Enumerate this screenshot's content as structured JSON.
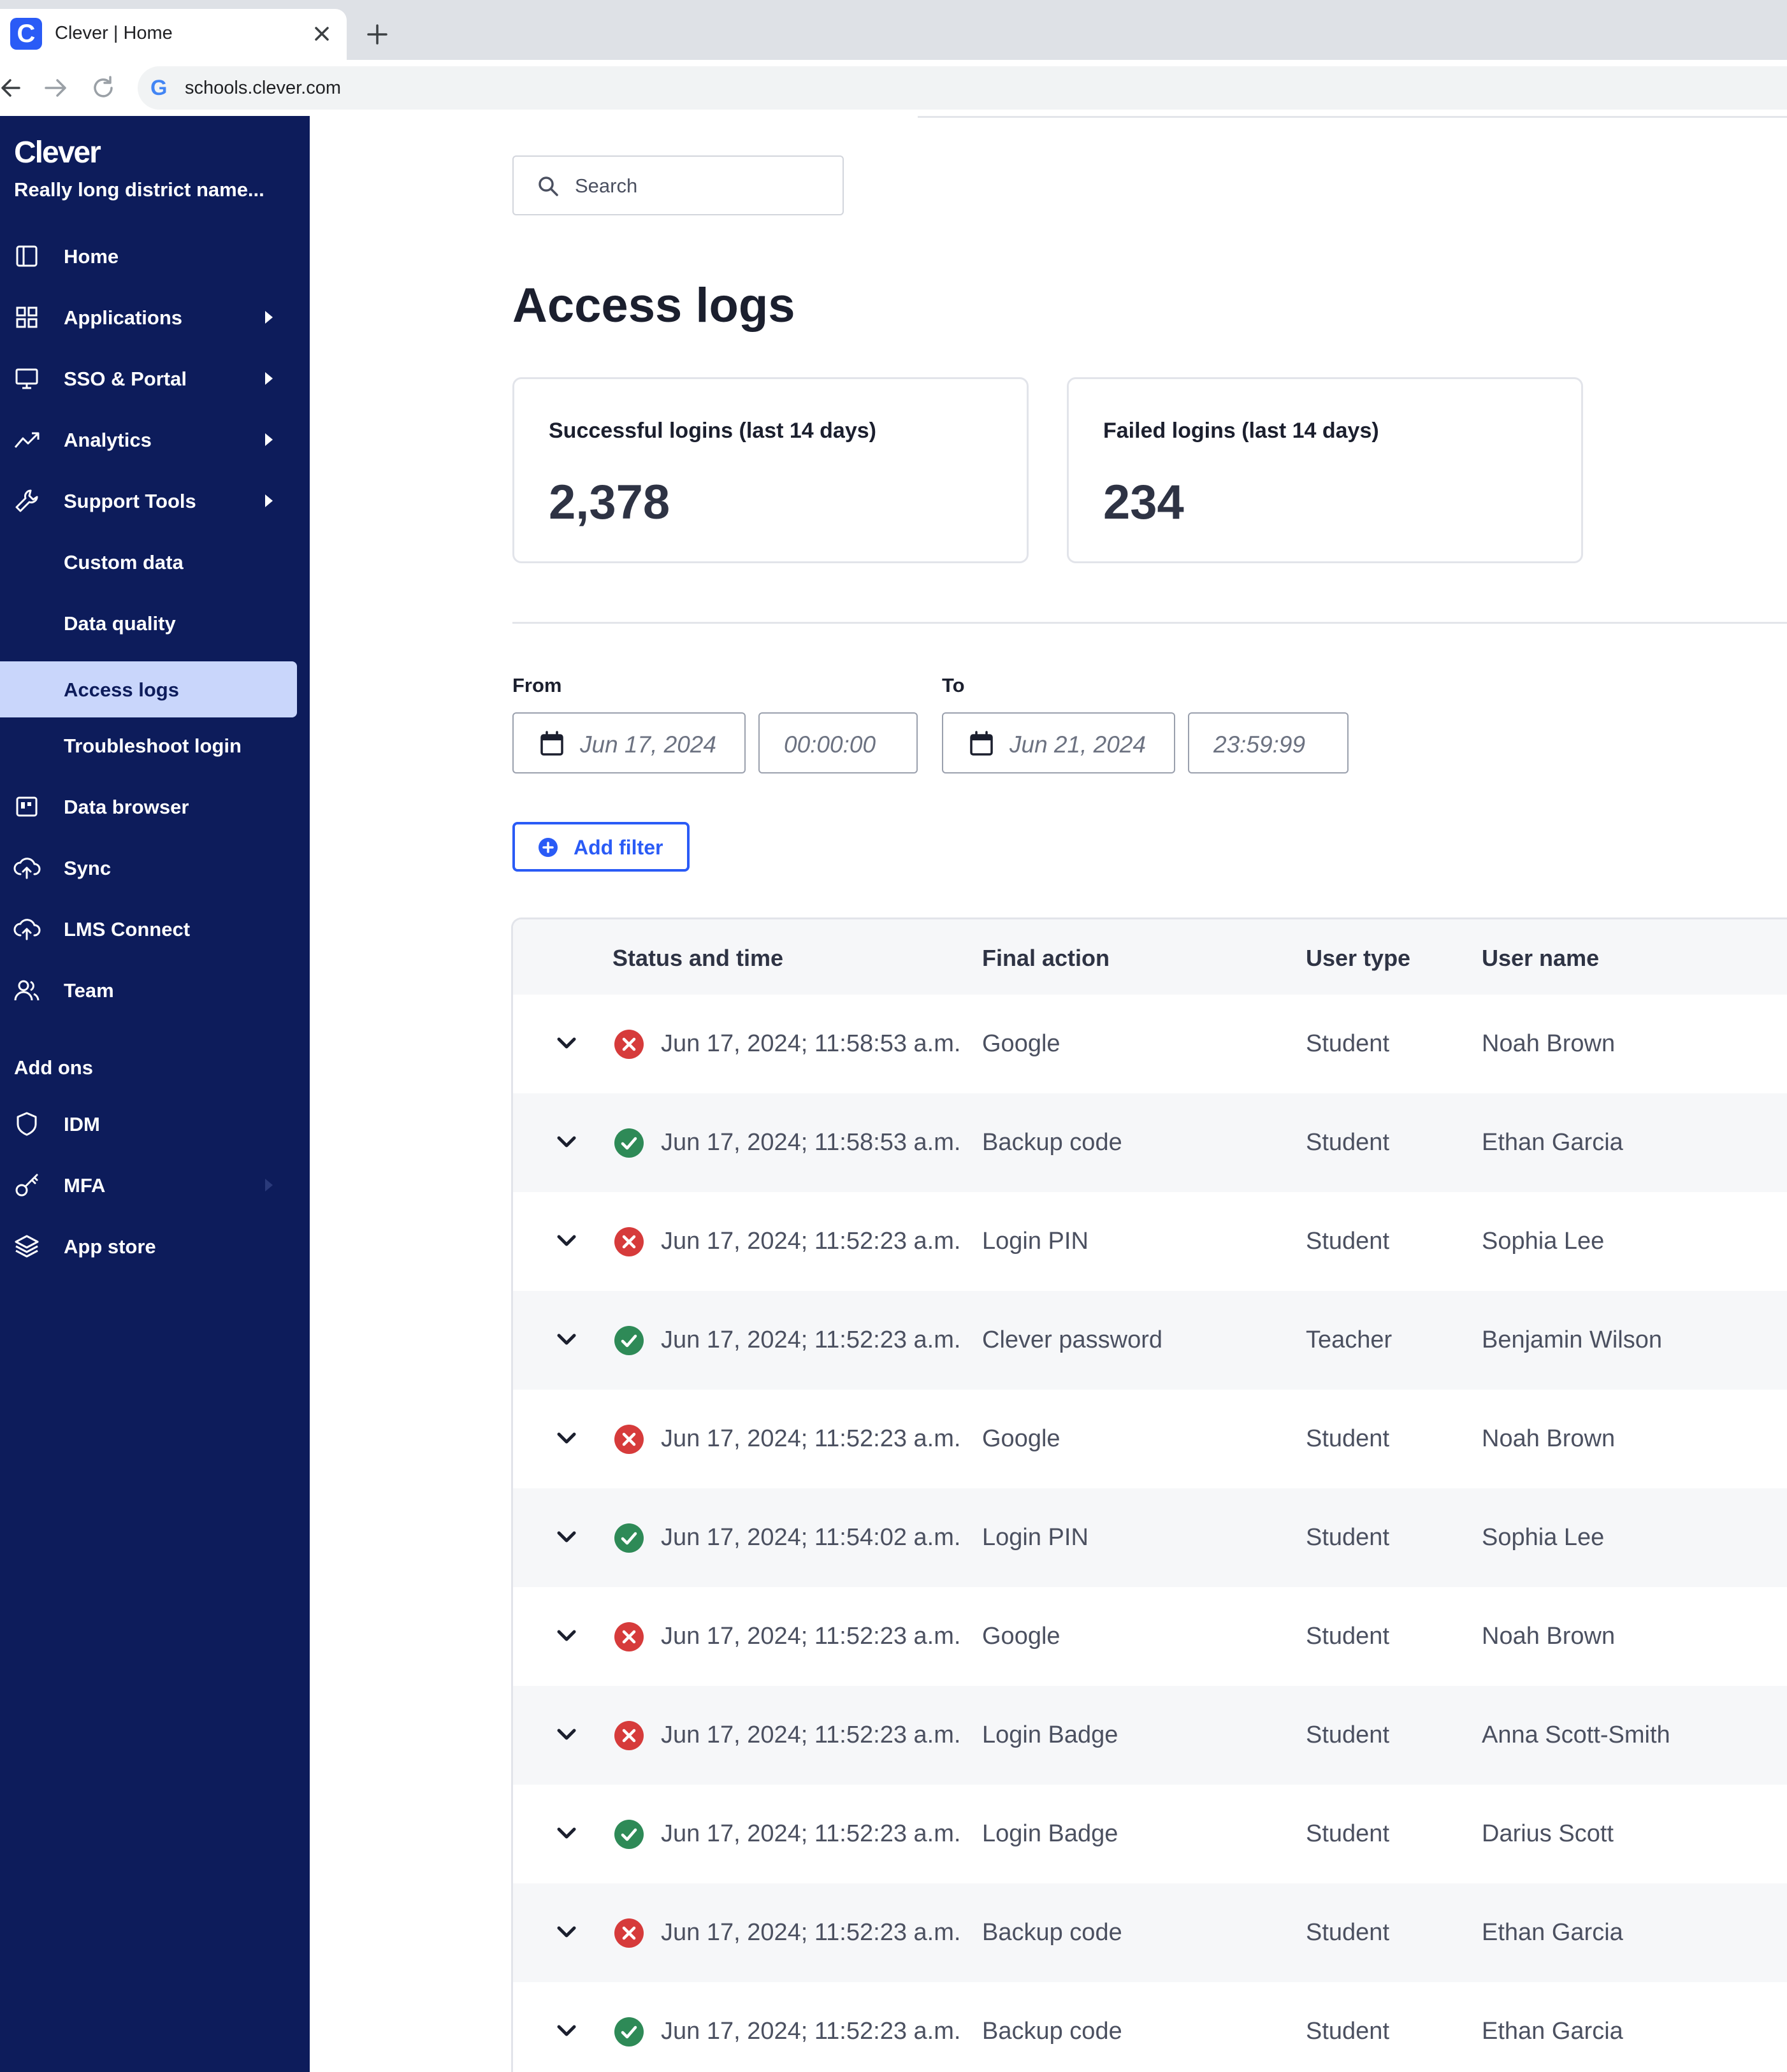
{
  "browser": {
    "tab_title": "Clever | Home",
    "favicon_letter": "C",
    "url": "schools.clever.com",
    "omnibox_icon": "G"
  },
  "sidebar": {
    "brand": "Clever",
    "district": "Really long district name...",
    "items": [
      {
        "label": "Home",
        "icon": "layout-icon"
      },
      {
        "label": "Applications",
        "icon": "grid-icon",
        "has_arrow": true
      },
      {
        "label": "SSO & Portal",
        "icon": "monitor-icon",
        "has_arrow": true
      },
      {
        "label": "Analytics",
        "icon": "trend-icon",
        "has_arrow": true
      },
      {
        "label": "Support Tools",
        "icon": "wrench-icon",
        "has_arrow": true
      },
      {
        "label": "Custom data"
      },
      {
        "label": "Data quality"
      },
      {
        "label": "Access logs",
        "active": true
      },
      {
        "label": "Troubleshoot login"
      },
      {
        "label": "Data browser",
        "icon": "browser-icon"
      },
      {
        "label": "Sync",
        "icon": "cloud-upload-icon"
      },
      {
        "label": "LMS Connect",
        "icon": "cloud-upload-icon"
      },
      {
        "label": "Team",
        "icon": "people-icon"
      }
    ],
    "addons_label": "Add ons",
    "addons": [
      {
        "label": "IDM",
        "icon": "shield-icon"
      },
      {
        "label": "MFA",
        "icon": "key-icon",
        "has_arrow": true
      },
      {
        "label": "App store",
        "icon": "layers-icon"
      }
    ]
  },
  "search": {
    "placeholder": "Search"
  },
  "page_title": "Access logs",
  "stats": [
    {
      "label": "Successful logins (last 14 days)",
      "value": "2,378"
    },
    {
      "label": "Failed logins (last 14 days)",
      "value": "234"
    }
  ],
  "filters": {
    "from_label": "From",
    "from_date": "Jun 17, 2024",
    "from_time": "00:00:00",
    "to_label": "To",
    "to_date": "Jun 21, 2024",
    "to_time": "23:59:99",
    "add_filter_label": "Add filter"
  },
  "table": {
    "columns": [
      "Status and time",
      "Final action",
      "User type",
      "User name"
    ],
    "rows": [
      {
        "status": "failed",
        "time": "Jun 17, 2024; 11:58:53 a.m.",
        "action": "Google",
        "user_type": "Student",
        "user_name": "Noah Brown"
      },
      {
        "status": "success",
        "time": "Jun 17, 2024; 11:58:53 a.m.",
        "action": "Backup code",
        "user_type": "Student",
        "user_name": "Ethan Garcia"
      },
      {
        "status": "failed",
        "time": "Jun 17, 2024; 11:52:23 a.m.",
        "action": "Login PIN",
        "user_type": "Student",
        "user_name": "Sophia Lee"
      },
      {
        "status": "success",
        "time": "Jun 17, 2024; 11:52:23 a.m.",
        "action": "Clever password",
        "user_type": "Teacher",
        "user_name": "Benjamin Wilson"
      },
      {
        "status": "failed",
        "time": "Jun 17, 2024; 11:52:23 a.m.",
        "action": "Google",
        "user_type": "Student",
        "user_name": "Noah Brown"
      },
      {
        "status": "success",
        "time": "Jun 17, 2024; 11:54:02 a.m.",
        "action": "Login PIN",
        "user_type": "Student",
        "user_name": "Sophia Lee"
      },
      {
        "status": "failed",
        "time": "Jun 17, 2024; 11:52:23 a.m.",
        "action": "Google",
        "user_type": "Student",
        "user_name": "Noah Brown"
      },
      {
        "status": "failed",
        "time": "Jun 17, 2024; 11:52:23 a.m.",
        "action": "Login Badge",
        "user_type": "Student",
        "user_name": "Anna Scott-Smith"
      },
      {
        "status": "success",
        "time": "Jun 17, 2024; 11:52:23 a.m.",
        "action": "Login Badge",
        "user_type": "Student",
        "user_name": "Darius Scott"
      },
      {
        "status": "failed",
        "time": "Jun 17, 2024; 11:52:23 a.m.",
        "action": "Backup code",
        "user_type": "Student",
        "user_name": "Ethan Garcia"
      },
      {
        "status": "success",
        "time": "Jun 17, 2024; 11:52:23 a.m.",
        "action": "Backup code",
        "user_type": "Student",
        "user_name": "Ethan Garcia"
      }
    ]
  },
  "colors": {
    "sidebar_bg": "#0d1c5b",
    "active_item_bg": "#c9d6fb",
    "accent": "#2a5bf6",
    "failed": "#d63b3b",
    "success": "#2e8a57"
  }
}
